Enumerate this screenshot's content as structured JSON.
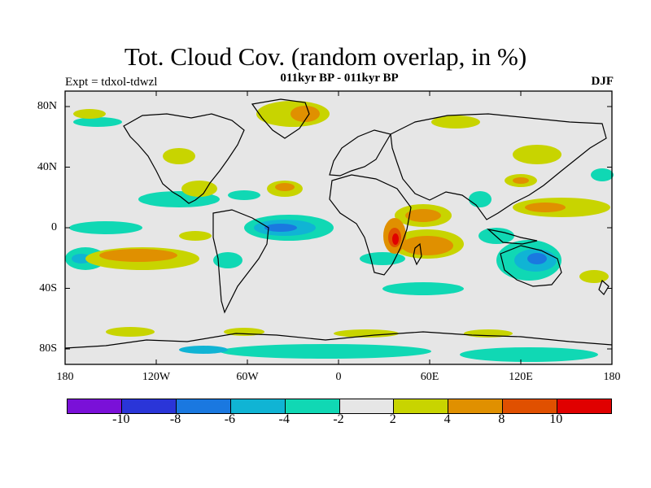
{
  "header": {
    "title": "Tot. Cloud Cov. (random overlap, in %)",
    "subtitle": "011kyr BP - 011kyr BP",
    "experiment": "Expt = tdxol-tdwzl",
    "season": "DJF"
  },
  "map": {
    "projection": "cylindrical equidistant",
    "x_ticks": [
      "180",
      "120W",
      "60W",
      "0",
      "60E",
      "120E",
      "180"
    ],
    "y_ticks": [
      "80N",
      "40N",
      "0",
      "40S",
      "80S"
    ],
    "background_color": "#e6e6e6"
  },
  "colorbar": {
    "colors": [
      "#7a10d8",
      "#2a35d8",
      "#1a78e0",
      "#10b4d4",
      "#10d8b4",
      "#e6e6e6",
      "#c8d400",
      "#e09000",
      "#e05000",
      "#e00000"
    ],
    "labels": [
      "-10",
      "-8",
      "-6",
      "-4",
      "-2",
      "2",
      "4",
      "8",
      "10"
    ]
  }
}
